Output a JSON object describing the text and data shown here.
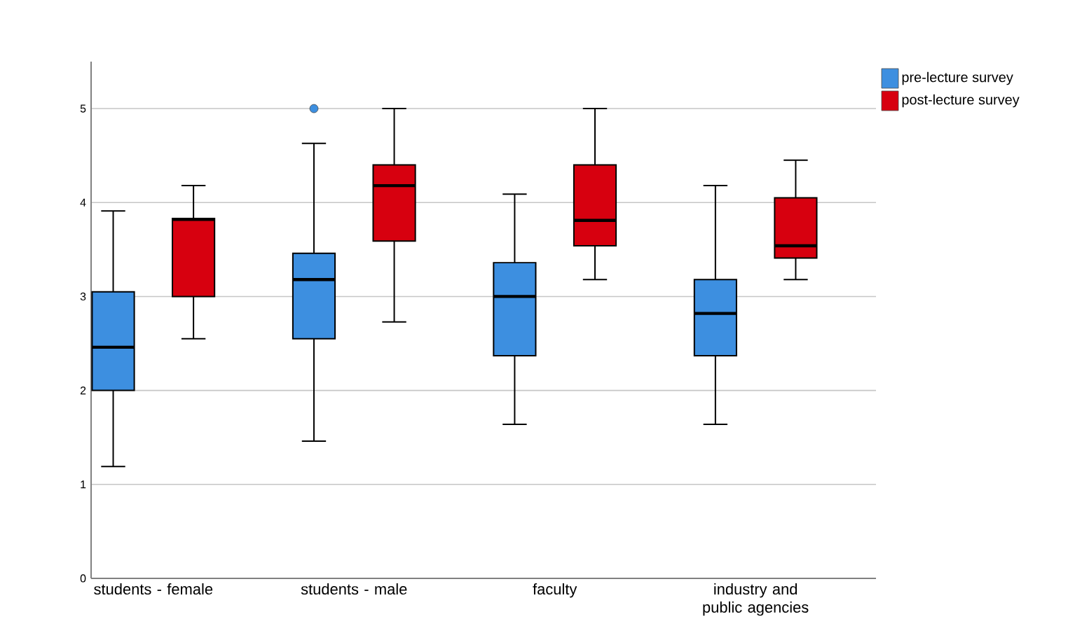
{
  "chart_data": {
    "type": "box",
    "categories": [
      "students - female",
      "students - male",
      "faculty",
      "industry and public agencies"
    ],
    "series": [
      {
        "name": "pre-lecture survey",
        "color": "#3d8fe0",
        "boxes": [
          {
            "low": 1.19,
            "q1": 2.0,
            "median": 2.46,
            "q3": 3.05,
            "high": 3.91
          },
          {
            "low": 1.46,
            "q1": 2.55,
            "median": 3.18,
            "q3": 3.46,
            "high": 4.63,
            "outliers": [
              5.0
            ]
          },
          {
            "low": 1.64,
            "q1": 2.37,
            "median": 3.0,
            "q3": 3.36,
            "high": 4.09
          },
          {
            "low": 1.64,
            "q1": 2.37,
            "median": 2.82,
            "q3": 3.18,
            "high": 4.18
          }
        ]
      },
      {
        "name": "post-lecture survey",
        "color": "#d7000f",
        "boxes": [
          {
            "low": 2.55,
            "q1": 3.0,
            "median": 3.82,
            "q3": 3.83,
            "high": 4.18
          },
          {
            "low": 2.73,
            "q1": 3.59,
            "median": 4.18,
            "q3": 4.4,
            "high": 5.0
          },
          {
            "low": 3.18,
            "q1": 3.54,
            "median": 3.81,
            "q3": 4.4,
            "high": 5.0
          },
          {
            "low": 3.18,
            "q1": 3.41,
            "median": 3.54,
            "q3": 4.05,
            "high": 4.45
          }
        ]
      }
    ],
    "ylim": [
      0,
      5.5
    ],
    "yticks": [
      0,
      1,
      2,
      3,
      4,
      5
    ],
    "grid": "y",
    "legend": "top right"
  }
}
